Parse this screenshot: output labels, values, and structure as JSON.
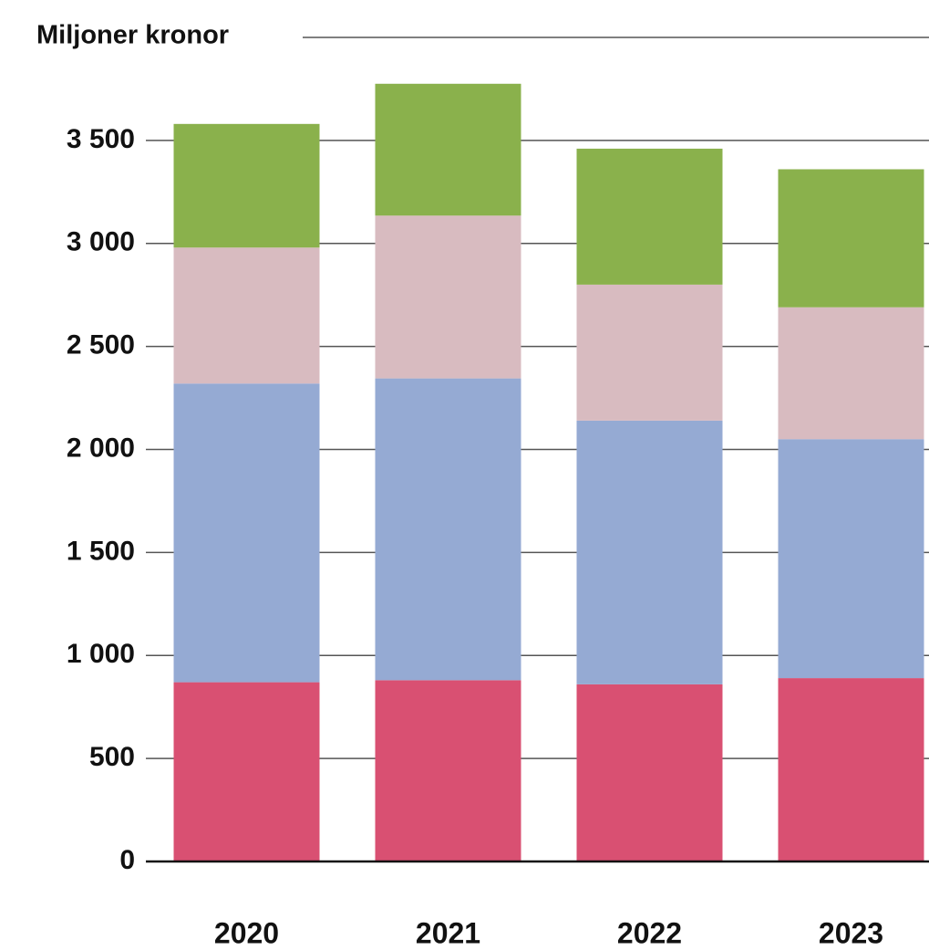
{
  "chart_data": {
    "type": "stacked_bar",
    "title": "Miljoner kronor",
    "categories": [
      "2020",
      "2021",
      "2022",
      "2023"
    ],
    "series": [
      {
        "color": "#d95072",
        "values": [
          870,
          880,
          860,
          890
        ]
      },
      {
        "color": "#95aad3",
        "values": [
          1450,
          1465,
          1280,
          1160
        ]
      },
      {
        "color": "#d8bbc0",
        "values": [
          660,
          790,
          660,
          640
        ]
      },
      {
        "color": "#8ab14c",
        "values": [
          600,
          640,
          660,
          670
        ]
      }
    ],
    "ylim": [
      0,
      4000
    ],
    "yticks": [
      0,
      500,
      {
        "value": 1000,
        "label": "1 000"
      },
      {
        "value": 1500,
        "label": "1 500"
      },
      {
        "value": 2000,
        "label": "2 000"
      },
      {
        "value": 2500,
        "label": "2 500"
      },
      {
        "value": 3000,
        "label": "3 000"
      },
      {
        "value": 3500,
        "label": "3 500"
      }
    ],
    "grid": true
  }
}
